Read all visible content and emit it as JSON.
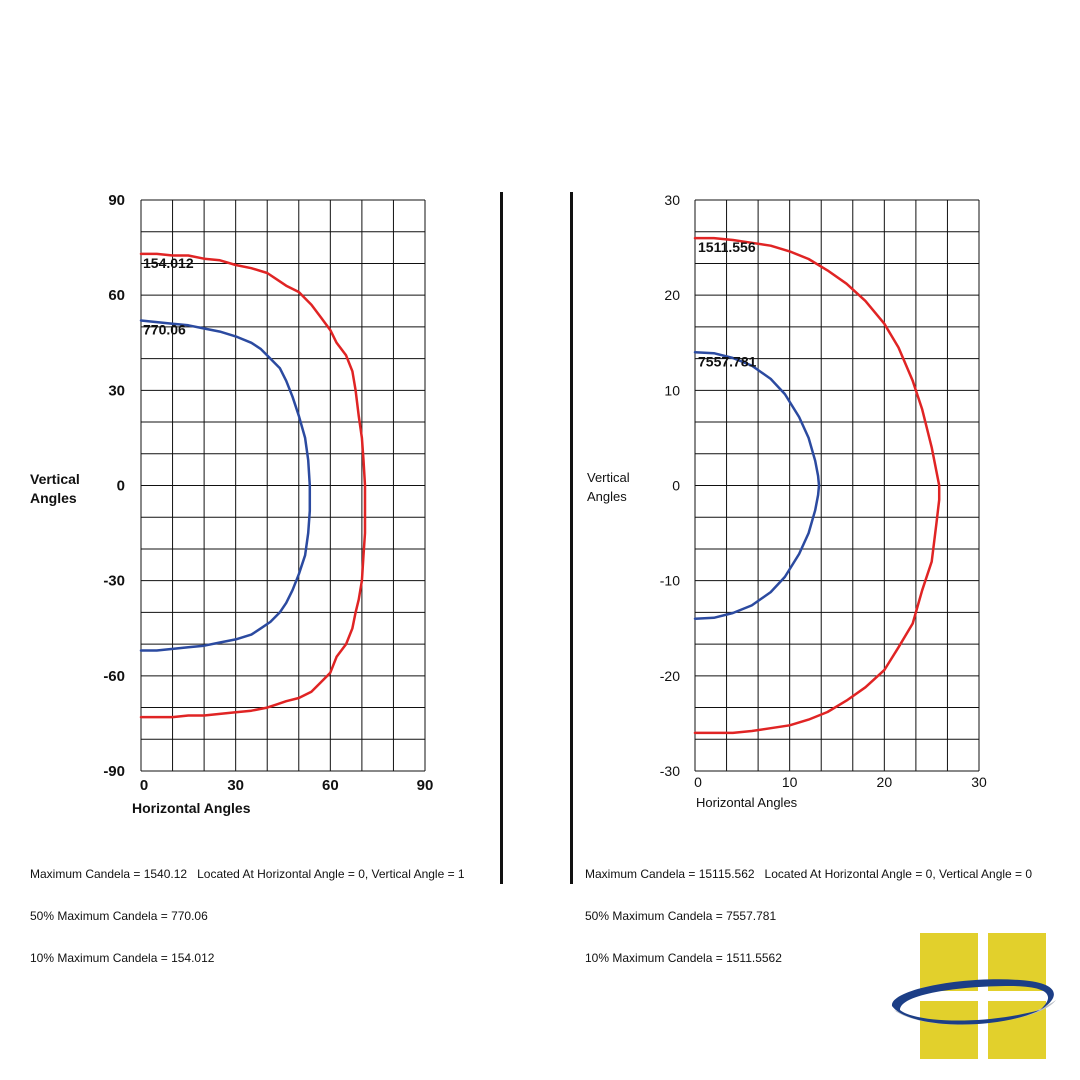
{
  "chart_data": [
    {
      "type": "line",
      "xlabel": "Horizontal Angles",
      "ylabel_line1": "Vertical",
      "ylabel_line2": "Angles",
      "xlim": [
        0,
        90
      ],
      "ylim": [
        -90,
        90
      ],
      "x_ticks": [
        "0",
        "30",
        "60",
        "90"
      ],
      "y_ticks": [
        "90",
        "60",
        "30",
        "0",
        "-30",
        "-60",
        "-90"
      ],
      "grid": true,
      "series": [
        {
          "name": "154.012",
          "color": "#e02424",
          "x": [
            0,
            5,
            10,
            15,
            20,
            25,
            30,
            35,
            40,
            43,
            46,
            50,
            54,
            57,
            60,
            62,
            65,
            67,
            68,
            69,
            70,
            70.5,
            71,
            71,
            71,
            70.5,
            70,
            69,
            68,
            67,
            65,
            62,
            60,
            57,
            54,
            50,
            46,
            43,
            40,
            35,
            30,
            25,
            20,
            15,
            10,
            5,
            0
          ],
          "y": [
            73,
            73,
            72.5,
            72.5,
            71.5,
            71,
            69.5,
            68.5,
            67,
            65,
            63,
            61,
            57,
            53,
            49,
            45,
            41,
            36,
            30,
            22,
            15,
            8,
            0,
            -8,
            -15,
            -22,
            -30,
            -36,
            -40,
            -45,
            -50,
            -54,
            -59,
            -62,
            -65,
            -67,
            -68,
            -69,
            -70,
            -71,
            -71.5,
            -72,
            -72.5,
            -72.5,
            -73,
            -73,
            -73
          ]
        },
        {
          "name": "770.06",
          "color": "#2b4aa0",
          "x": [
            0,
            5,
            10,
            15,
            20,
            25,
            30,
            35,
            38,
            41,
            44,
            46,
            48,
            50,
            52,
            53,
            53.5,
            53.5,
            53,
            52,
            50,
            48,
            46,
            44,
            41,
            38,
            35,
            30,
            25,
            20,
            15,
            10,
            5,
            0
          ],
          "y": [
            52,
            51.5,
            51,
            50.5,
            49.5,
            48.5,
            47,
            45,
            43,
            40,
            37,
            33,
            28,
            22,
            15,
            8,
            0,
            -8,
            -15,
            -22,
            -28,
            -33,
            -37,
            -40,
            -43,
            -45,
            -47,
            -48.5,
            -49.5,
            -50.5,
            -51,
            -51.5,
            -52,
            -52
          ]
        }
      ],
      "annotations": [
        "154.012",
        "770.06"
      ],
      "stats": [
        "Maximum Candela = 1540.12   Located At Horizontal Angle = 0, Vertical Angle = 1",
        "50% Maximum Candela = 770.06",
        "10% Maximum Candela = 154.012"
      ]
    },
    {
      "type": "line",
      "xlabel": "Horizontal Angles",
      "ylabel_line1": "Vertical",
      "ylabel_line2": "Angles",
      "xlim": [
        0,
        30
      ],
      "ylim": [
        -30,
        30
      ],
      "x_ticks": [
        "0",
        "10",
        "20",
        "30"
      ],
      "y_ticks": [
        "30",
        "20",
        "10",
        "0",
        "-10",
        "-20",
        "-30"
      ],
      "grid": true,
      "series": [
        {
          "name": "1511.556",
          "color": "#e02424",
          "x": [
            0,
            2,
            4,
            6,
            8,
            10,
            12,
            14,
            16,
            18,
            20,
            21.5,
            23,
            24,
            25,
            25.5,
            25.8,
            25.8,
            25.5,
            25,
            24,
            23,
            21.5,
            20,
            18,
            16,
            14,
            12,
            10,
            8,
            6,
            4,
            2,
            0
          ],
          "y": [
            26,
            26,
            25.8,
            25.5,
            25.2,
            24.6,
            23.8,
            22.6,
            21.2,
            19.4,
            17,
            14.5,
            11,
            8,
            4,
            1.5,
            0,
            -1.5,
            -4,
            -8,
            -11,
            -14.5,
            -17,
            -19.4,
            -21.2,
            -22.6,
            -23.8,
            -24.6,
            -25.2,
            -25.5,
            -25.8,
            -26,
            -26,
            -26
          ]
        },
        {
          "name": "7557.781",
          "color": "#2b4aa0",
          "x": [
            0,
            2,
            4,
            6,
            8,
            9.5,
            11,
            12,
            12.7,
            13,
            13.1,
            13,
            12.7,
            12,
            11,
            9.5,
            8,
            6,
            4,
            2,
            0
          ],
          "y": [
            14,
            13.9,
            13.4,
            12.6,
            11.2,
            9.6,
            7.2,
            5,
            2.6,
            1,
            0,
            -1,
            -2.6,
            -5,
            -7.2,
            -9.6,
            -11.2,
            -12.6,
            -13.4,
            -13.9,
            -14
          ]
        }
      ],
      "annotations": [
        "1511.556",
        "7557.781"
      ],
      "stats": [
        "Maximum Candela = 15115.562   Located At Horizontal Angle = 0, Vertical Angle = 0",
        "50% Maximum Candela = 7557.781",
        "10% Maximum Candela = 1511.5562"
      ]
    }
  ],
  "logo": {
    "colors": {
      "yellow": "#e2d02c",
      "blue": "#1c3e86",
      "gray": "#b9bec7"
    }
  }
}
